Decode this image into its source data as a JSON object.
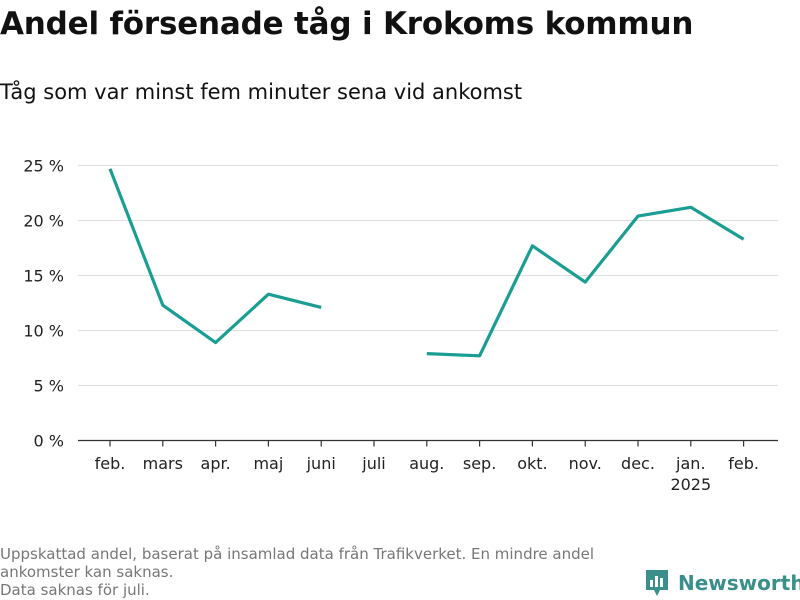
{
  "header": {
    "title": "Andel försenade tåg i Krokoms kommun",
    "subtitle": "Tåg som var minst fem minuter sena vid ankomst"
  },
  "chart_data": {
    "type": "line",
    "categories": [
      "feb.",
      "mars",
      "apr.",
      "maj",
      "juni",
      "juli",
      "aug.",
      "sep.",
      "okt.",
      "nov.",
      "dec.",
      "jan.",
      "feb."
    ],
    "year_marker": {
      "category_index": 11,
      "label": "2025"
    },
    "series": [
      {
        "values": [
          24.7,
          12.3,
          8.9,
          13.3,
          12.1,
          null,
          7.9,
          7.7,
          17.7,
          14.4,
          20.4,
          21.2,
          18.3
        ]
      }
    ],
    "y_ticks": [
      0,
      5,
      10,
      15,
      20,
      25
    ],
    "y_tick_labels": [
      "0 %",
      "5 %",
      "10 %",
      "15 %",
      "20 %",
      "25 %"
    ],
    "ylim": [
      0,
      25
    ],
    "grid": true,
    "line_color": "#1a9e93"
  },
  "footer": {
    "note_lines": [
      "Uppskattad andel, baserat på insamlad data från Trafikverket. En mindre andel ankomster kan saknas.",
      "Data saknas för juli."
    ],
    "brand": "Newsworthy",
    "brand_color": "#3a8f8a"
  }
}
